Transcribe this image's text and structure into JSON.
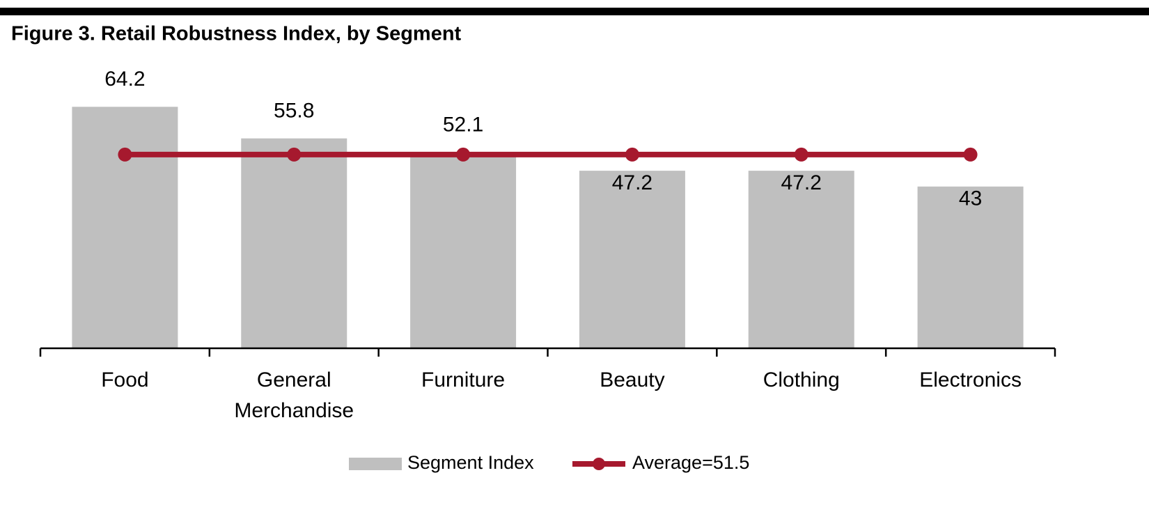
{
  "chart_data": {
    "type": "bar_line",
    "title": "Figure 3. Retail Robustness Index, by Segment",
    "categories": [
      "Food",
      "General Merchandise",
      "Furniture",
      "Beauty",
      "Clothing",
      "Electronics"
    ],
    "series": [
      {
        "name": "Segment Index",
        "type": "bar",
        "color": "#bfbfbf",
        "values": [
          64.2,
          55.8,
          52.1,
          47.2,
          47.2,
          43
        ]
      },
      {
        "name": "Average=51.5",
        "type": "line",
        "color": "#a6192e",
        "values": [
          51.5,
          51.5,
          51.5,
          51.5,
          51.5,
          51.5
        ]
      }
    ],
    "ylim": [
      0,
      70
    ],
    "grid": false,
    "legend": "bottom"
  }
}
